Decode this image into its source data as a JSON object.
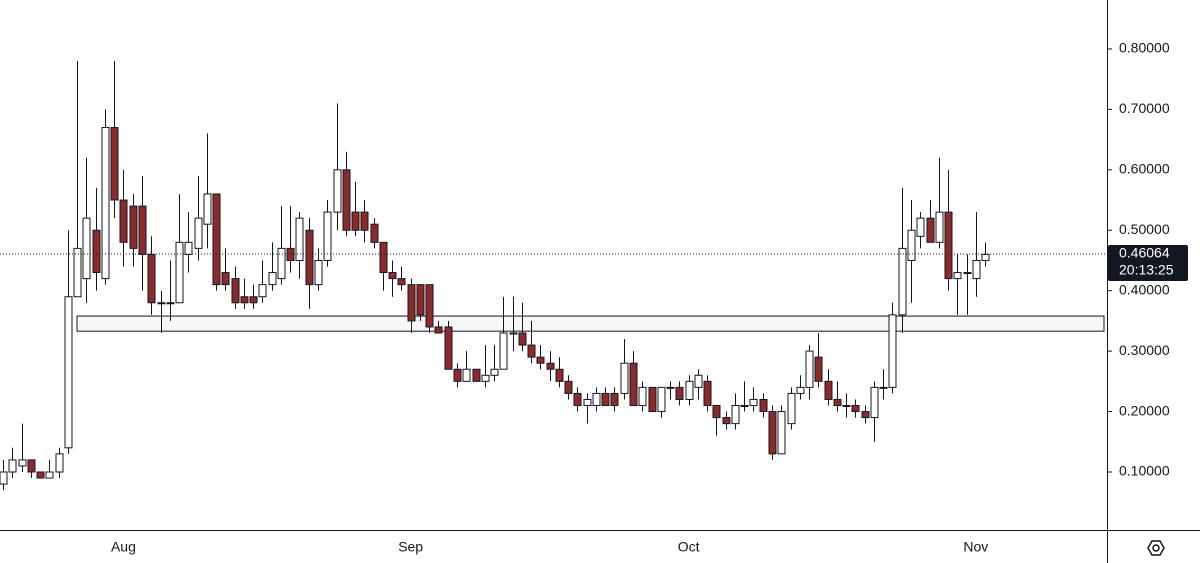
{
  "chart_data": {
    "type": "candlestick",
    "categories": [
      null,
      null,
      null,
      null,
      null,
      null,
      null,
      null,
      null,
      null,
      null,
      null,
      null,
      "Aug",
      null,
      null,
      null,
      null,
      null,
      null,
      null,
      null,
      null,
      null,
      null,
      null,
      null,
      null,
      null,
      null,
      null,
      null,
      null,
      null,
      null,
      null,
      null,
      null,
      null,
      null,
      null,
      null,
      null,
      null,
      "Sep",
      null,
      null,
      null,
      null,
      null,
      null,
      null,
      null,
      null,
      null,
      null,
      null,
      null,
      null,
      null,
      null,
      null,
      null,
      null,
      null,
      null,
      null,
      null,
      null,
      null,
      null,
      null,
      null,
      null,
      "Oct",
      null,
      null,
      null,
      null,
      null,
      null,
      null,
      null,
      null,
      null,
      null,
      null,
      null,
      null,
      null,
      null,
      null,
      null,
      null,
      null,
      null,
      null,
      null,
      null,
      null,
      null,
      null,
      null,
      null,
      null,
      "Nov",
      null
    ],
    "open": [
      0.08,
      0.1,
      0.11,
      0.12,
      0.1,
      0.09,
      0.1,
      0.14,
      0.39,
      0.42,
      0.5,
      0.42,
      0.67,
      0.55,
      0.54,
      0.54,
      0.46,
      0.38,
      0.38,
      0.38,
      0.46,
      0.47,
      0.51,
      0.56,
      0.43,
      0.42,
      0.39,
      0.39,
      0.39,
      0.41,
      0.42,
      0.47,
      0.45,
      0.5,
      0.41,
      0.45,
      0.53,
      0.6,
      0.53,
      0.53,
      0.51,
      0.48,
      0.43,
      0.42,
      0.41,
      0.41,
      0.41,
      0.34,
      0.34,
      0.27,
      0.25,
      0.27,
      0.25,
      0.26,
      0.27,
      0.33,
      0.33,
      0.31,
      0.29,
      0.28,
      0.27,
      0.25,
      0.23,
      0.21,
      0.21,
      0.23,
      0.23,
      0.23,
      0.28,
      0.21,
      0.24,
      0.2,
      0.24,
      0.24,
      0.22,
      0.24,
      0.25,
      0.21,
      0.19,
      0.18,
      0.21,
      0.21,
      0.22,
      0.2,
      0.13,
      0.18,
      0.23,
      0.24,
      0.29,
      0.25,
      0.22,
      0.21,
      0.21,
      0.2,
      0.19,
      0.24,
      0.24,
      0.36,
      0.45,
      0.49,
      0.52,
      0.48,
      0.53,
      0.42,
      0.43,
      0.42,
      0.45
    ],
    "high": [
      0.12,
      0.14,
      0.18,
      0.12,
      0.1,
      0.12,
      0.14,
      0.5,
      0.78,
      0.62,
      0.57,
      0.7,
      0.78,
      0.6,
      0.56,
      0.59,
      0.49,
      0.4,
      0.45,
      0.56,
      0.53,
      0.59,
      0.66,
      0.56,
      0.47,
      0.44,
      0.42,
      0.41,
      0.45,
      0.48,
      0.54,
      0.54,
      0.53,
      0.52,
      0.47,
      0.55,
      0.71,
      0.63,
      0.58,
      0.55,
      0.52,
      0.48,
      0.45,
      0.44,
      0.42,
      0.41,
      0.41,
      0.35,
      0.35,
      0.28,
      0.3,
      0.27,
      0.31,
      0.31,
      0.39,
      0.39,
      0.38,
      0.35,
      0.31,
      0.3,
      0.29,
      0.26,
      0.24,
      0.23,
      0.24,
      0.24,
      0.24,
      0.32,
      0.3,
      0.25,
      0.24,
      0.24,
      0.25,
      0.25,
      0.26,
      0.27,
      0.26,
      0.21,
      0.2,
      0.23,
      0.25,
      0.24,
      0.23,
      0.21,
      0.21,
      0.24,
      0.26,
      0.31,
      0.33,
      0.27,
      0.25,
      0.23,
      0.22,
      0.21,
      0.25,
      0.27,
      0.38,
      0.57,
      0.55,
      0.53,
      0.55,
      0.62,
      0.6,
      0.46,
      0.46,
      0.53,
      0.48
    ],
    "low": [
      0.07,
      0.09,
      0.1,
      0.09,
      0.09,
      0.09,
      0.09,
      0.13,
      0.39,
      0.38,
      0.4,
      0.41,
      0.52,
      0.44,
      0.44,
      0.4,
      0.36,
      0.33,
      0.35,
      0.38,
      0.43,
      0.45,
      0.47,
      0.4,
      0.4,
      0.37,
      0.37,
      0.37,
      0.38,
      0.4,
      0.41,
      0.43,
      0.42,
      0.37,
      0.4,
      0.44,
      0.5,
      0.49,
      0.49,
      0.48,
      0.47,
      0.4,
      0.39,
      0.4,
      0.33,
      0.35,
      0.33,
      0.33,
      0.27,
      0.24,
      0.25,
      0.25,
      0.24,
      0.25,
      0.27,
      0.3,
      0.3,
      0.28,
      0.27,
      0.25,
      0.24,
      0.22,
      0.2,
      0.18,
      0.2,
      0.21,
      0.2,
      0.22,
      0.21,
      0.2,
      0.2,
      0.19,
      0.22,
      0.21,
      0.21,
      0.22,
      0.2,
      0.16,
      0.17,
      0.17,
      0.2,
      0.2,
      0.19,
      0.12,
      0.13,
      0.17,
      0.22,
      0.22,
      0.24,
      0.21,
      0.2,
      0.19,
      0.19,
      0.18,
      0.15,
      0.22,
      0.23,
      0.33,
      0.38,
      0.47,
      0.48,
      0.47,
      0.4,
      0.36,
      0.36,
      0.39,
      0.44
    ],
    "close": [
      0.1,
      0.12,
      0.12,
      0.1,
      0.09,
      0.1,
      0.13,
      0.39,
      0.47,
      0.52,
      0.43,
      0.67,
      0.55,
      0.48,
      0.47,
      0.46,
      0.38,
      0.38,
      0.38,
      0.48,
      0.48,
      0.52,
      0.56,
      0.41,
      0.41,
      0.38,
      0.38,
      0.38,
      0.41,
      0.43,
      0.47,
      0.45,
      0.52,
      0.41,
      0.45,
      0.53,
      0.6,
      0.5,
      0.5,
      0.5,
      0.48,
      0.43,
      0.42,
      0.41,
      0.35,
      0.36,
      0.34,
      0.33,
      0.27,
      0.25,
      0.27,
      0.25,
      0.26,
      0.27,
      0.33,
      0.33,
      0.31,
      0.29,
      0.28,
      0.27,
      0.25,
      0.23,
      0.21,
      0.22,
      0.23,
      0.21,
      0.21,
      0.28,
      0.21,
      0.24,
      0.2,
      0.24,
      0.24,
      0.22,
      0.25,
      0.26,
      0.21,
      0.19,
      0.18,
      0.21,
      0.21,
      0.22,
      0.2,
      0.13,
      0.2,
      0.23,
      0.24,
      0.3,
      0.25,
      0.22,
      0.21,
      0.21,
      0.2,
      0.19,
      0.24,
      0.24,
      0.36,
      0.47,
      0.5,
      0.52,
      0.48,
      0.53,
      0.42,
      0.43,
      0.43,
      0.45,
      0.46
    ],
    "up_color": "#ffffff",
    "down_color": "#8b2b2b",
    "zone": [
      0.333,
      0.358
    ],
    "last_price": 0.46064,
    "countdown": "20:13:25",
    "ylim": [
      0.004,
      0.881
    ],
    "yticks": [
      {
        "value": 0.1,
        "label": "0.10000"
      },
      {
        "value": 0.2,
        "label": "0.20000"
      },
      {
        "value": 0.3,
        "label": "0.30000"
      },
      {
        "value": 0.4,
        "label": "0.40000"
      },
      {
        "value": 0.5,
        "label": "0.50000"
      },
      {
        "value": 0.6,
        "label": "0.60000"
      },
      {
        "value": 0.7,
        "label": "0.70000"
      },
      {
        "value": 0.8,
        "label": "0.80000"
      }
    ]
  }
}
